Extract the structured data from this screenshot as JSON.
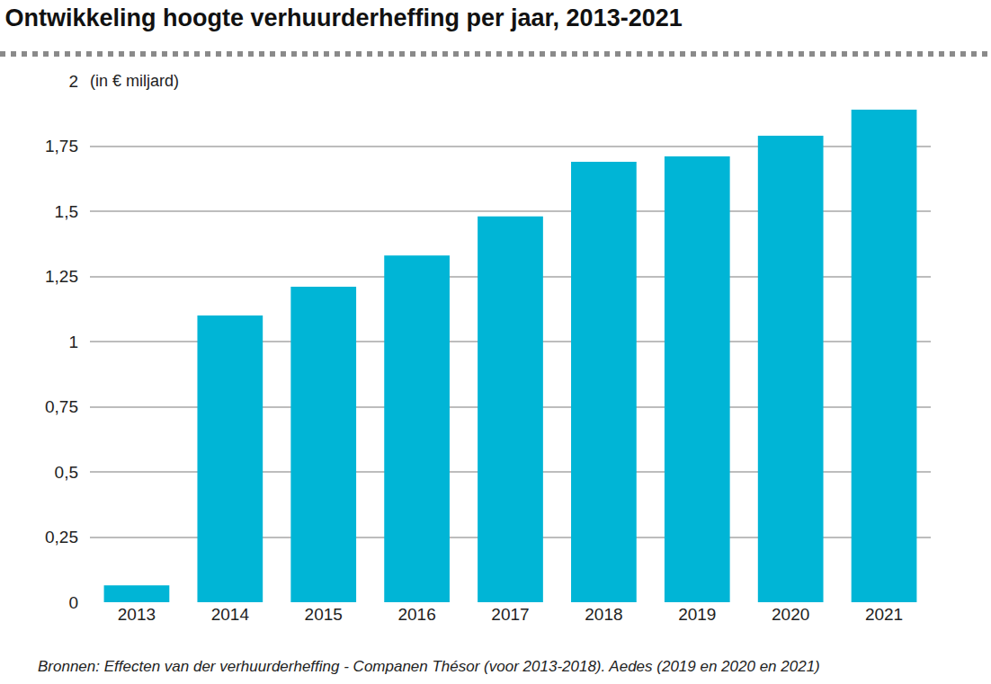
{
  "chart_data": {
    "type": "bar",
    "title": "Ontwikkeling hoogte verhuurderheffing per jaar, 2013-2021",
    "ylabel": "(in € miljard)",
    "annotations": [
      "Bronnen: Effecten van der verhuurderheffing - Companen Thésor (voor 2013-2018). Aedes (2019 en 2020 en 2021)"
    ],
    "categories": [
      "2013",
      "2014",
      "2015",
      "2016",
      "2017",
      "2018",
      "2019",
      "2020",
      "2021"
    ],
    "values": [
      0.065,
      1.1,
      1.21,
      1.33,
      1.48,
      1.69,
      1.71,
      1.79,
      1.89
    ],
    "color": "#00b5d6",
    "ylim": [
      0,
      2
    ],
    "yticks": [
      0,
      {
        "value": 0.25,
        "label": "0,25"
      },
      {
        "value": 0.5,
        "label": "0,5"
      },
      {
        "value": 0.75,
        "label": "0,75"
      },
      1,
      {
        "value": 1.25,
        "label": "1,25"
      },
      {
        "value": 1.5,
        "label": "1,5"
      },
      {
        "value": 1.75,
        "label": "1,75"
      },
      2
    ],
    "grid": true
  }
}
